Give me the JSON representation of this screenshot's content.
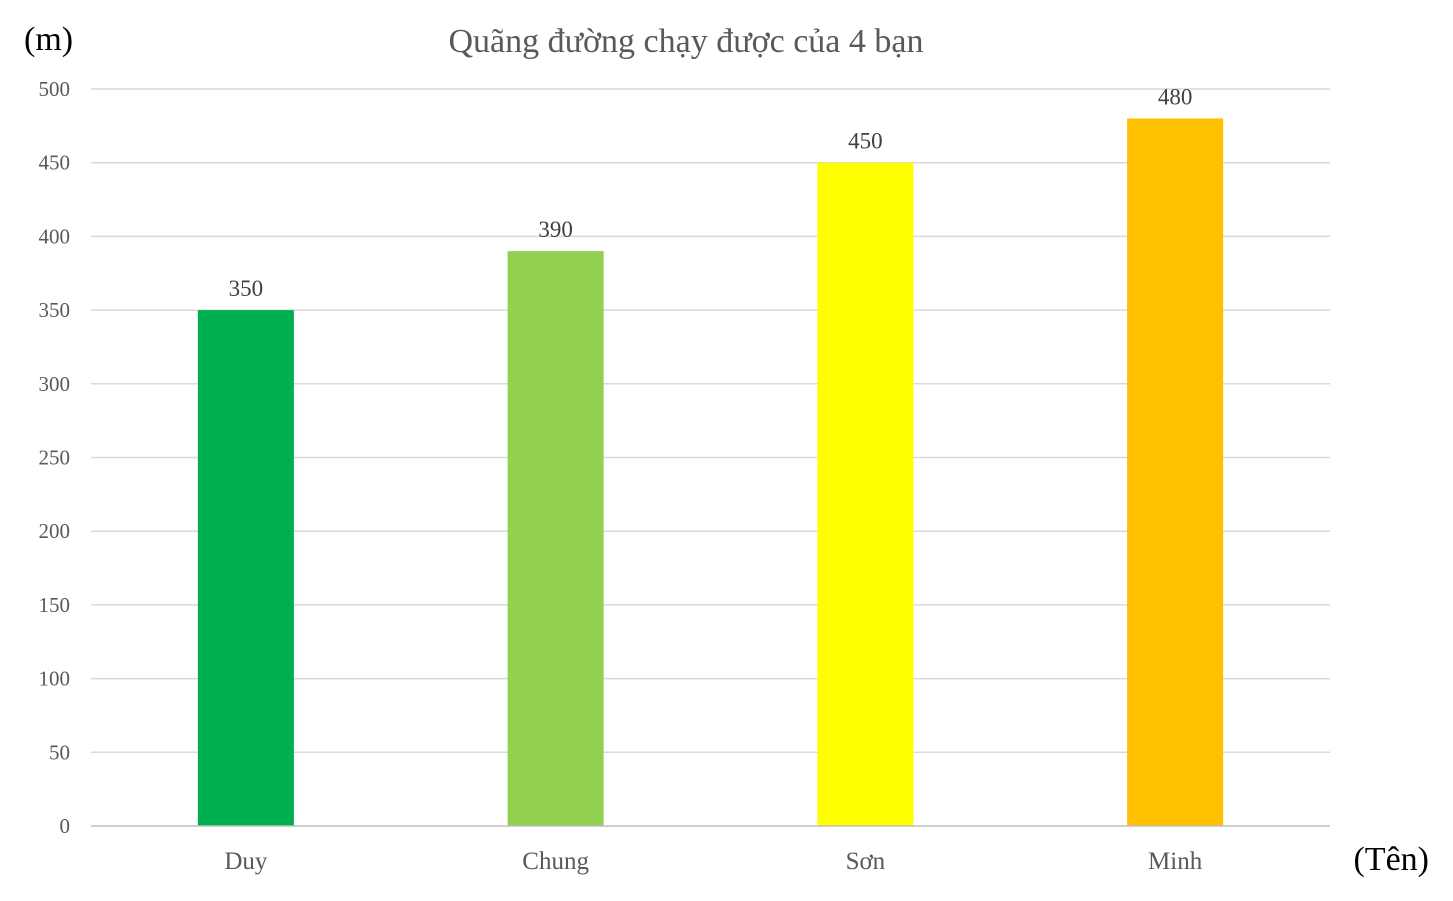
{
  "chart_data": {
    "type": "bar",
    "title": "Quãng đường chạy được của 4 bạn",
    "ylabel": "(m)",
    "xlabel": "(Tên)",
    "categories": [
      "Duy",
      "Chung",
      "Sơn",
      "Minh"
    ],
    "values": [
      350,
      390,
      450,
      480
    ],
    "bar_colors": [
      "#00b050",
      "#92d050",
      "#ffff00",
      "#ffc000"
    ],
    "ylim": [
      0,
      500
    ],
    "yticks": [
      0,
      50,
      100,
      150,
      200,
      250,
      300,
      350,
      400,
      450,
      500
    ],
    "grid": true,
    "legend": "none",
    "data_labels": true
  }
}
